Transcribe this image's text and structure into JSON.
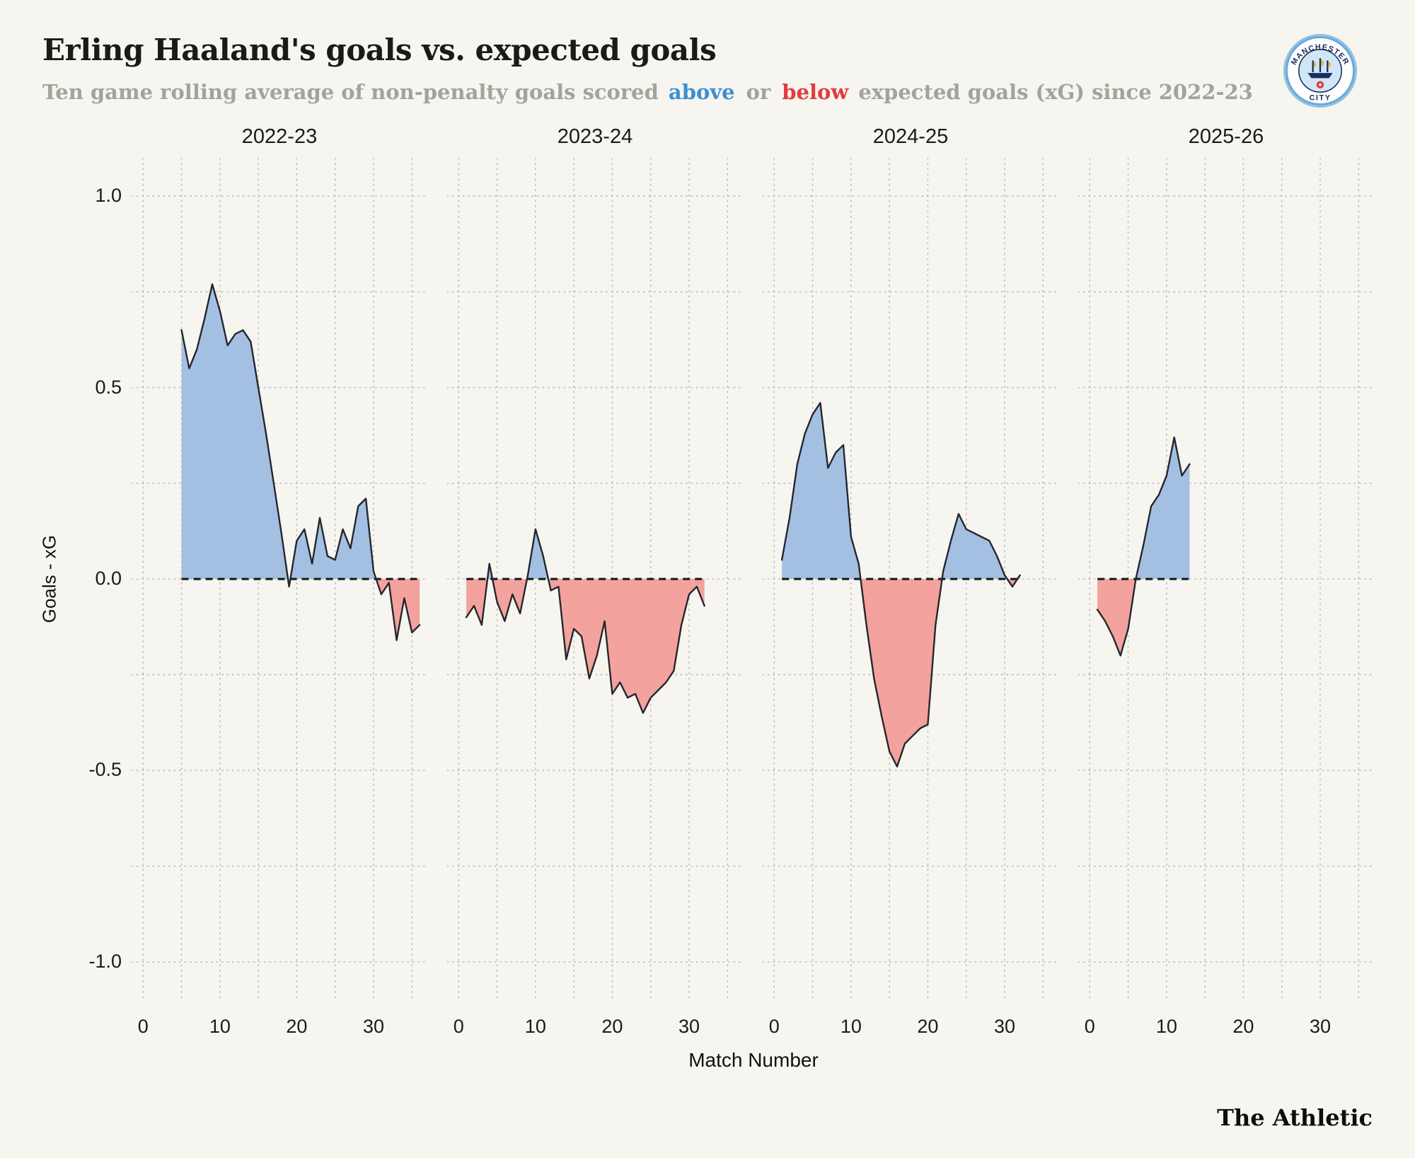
{
  "header": {
    "title": "Erling Haaland's goals vs. expected goals",
    "subtitle": {
      "prefix": "Ten game rolling average of non-penalty goals scored",
      "above_word": "above",
      "or_word": "or",
      "below_word": "below",
      "suffix": "expected goals (xG) since 2022-23"
    },
    "logo": {
      "club": "Manchester City",
      "top_text": "MANCHESTER",
      "bottom_text": "CITY"
    }
  },
  "footer": {
    "brand": "The Athletic"
  },
  "colors": {
    "background": "#f6f5ef",
    "above_fill": "#a3c0e3",
    "below_fill": "#f4a29e",
    "line": "#26262e",
    "zero_line": "#15151a",
    "grid": "#bdbdb7",
    "accent_blue": "#3d8fd1",
    "accent_red": "#e23b3e"
  },
  "chart_data": {
    "type": "area",
    "title": "Erling Haaland's goals vs. expected goals",
    "subtitle": "Ten game rolling average of non-penalty goals scored above or below expected goals (xG) since 2022-23",
    "xlabel": "Match Number",
    "ylabel": "Goals - xG",
    "ylim": [
      -1.1,
      1.1
    ],
    "xlim": [
      -1.5,
      37
    ],
    "yticks": [
      1.0,
      0.5,
      0.0,
      -0.5,
      -1.0
    ],
    "xticks": [
      0,
      10,
      20,
      30
    ],
    "grid": "dotted",
    "zero_baseline": 0,
    "legend_position": "none",
    "facets": [
      {
        "label": "2022-23",
        "x": [
          5,
          6,
          7,
          8,
          9,
          10,
          11,
          12,
          13,
          14,
          15,
          16,
          17,
          18,
          19,
          20,
          21,
          22,
          23,
          24,
          25,
          26,
          27,
          28,
          29,
          30,
          31,
          32,
          33,
          34,
          35,
          36
        ],
        "y": [
          0.65,
          0.55,
          0.6,
          0.68,
          0.77,
          0.7,
          0.61,
          0.64,
          0.65,
          0.62,
          0.5,
          0.38,
          0.25,
          0.12,
          -0.02,
          0.1,
          0.13,
          0.04,
          0.16,
          0.06,
          0.05,
          0.13,
          0.08,
          0.19,
          0.21,
          0.02,
          -0.04,
          -0.01,
          -0.16,
          -0.05,
          -0.14,
          -0.12
        ]
      },
      {
        "label": "2023-24",
        "x": [
          1,
          2,
          3,
          4,
          5,
          6,
          7,
          8,
          9,
          10,
          11,
          12,
          13,
          14,
          15,
          16,
          17,
          18,
          19,
          20,
          21,
          22,
          23,
          24,
          25,
          26,
          27,
          28,
          29,
          30,
          31,
          32
        ],
        "y": [
          -0.1,
          -0.07,
          -0.12,
          0.04,
          -0.06,
          -0.11,
          -0.04,
          -0.09,
          0.01,
          0.13,
          0.06,
          -0.03,
          -0.02,
          -0.21,
          -0.13,
          -0.15,
          -0.26,
          -0.2,
          -0.11,
          -0.3,
          -0.27,
          -0.31,
          -0.3,
          -0.35,
          -0.31,
          -0.29,
          -0.27,
          -0.24,
          -0.12,
          -0.04,
          -0.02,
          -0.07
        ]
      },
      {
        "label": "2024-25",
        "x": [
          1,
          2,
          3,
          4,
          5,
          6,
          7,
          8,
          9,
          10,
          11,
          12,
          13,
          14,
          15,
          16,
          17,
          18,
          19,
          20,
          21,
          22,
          23,
          24,
          25,
          26,
          27,
          28,
          29,
          30,
          31,
          32
        ],
        "y": [
          0.05,
          0.16,
          0.3,
          0.38,
          0.43,
          0.46,
          0.29,
          0.33,
          0.35,
          0.11,
          0.04,
          -0.12,
          -0.26,
          -0.36,
          -0.45,
          -0.49,
          -0.43,
          -0.41,
          -0.39,
          -0.38,
          -0.12,
          0.02,
          0.1,
          0.17,
          0.13,
          0.12,
          0.11,
          0.1,
          0.06,
          0.01,
          -0.02,
          0.01
        ]
      },
      {
        "label": "2025-26",
        "x": [
          1,
          2,
          3,
          4,
          5,
          6,
          7,
          8,
          9,
          10,
          11,
          12,
          13
        ],
        "y": [
          -0.08,
          -0.11,
          -0.15,
          -0.2,
          -0.13,
          0.0,
          0.09,
          0.19,
          0.22,
          0.27,
          0.37,
          0.27,
          0.3
        ]
      }
    ]
  }
}
